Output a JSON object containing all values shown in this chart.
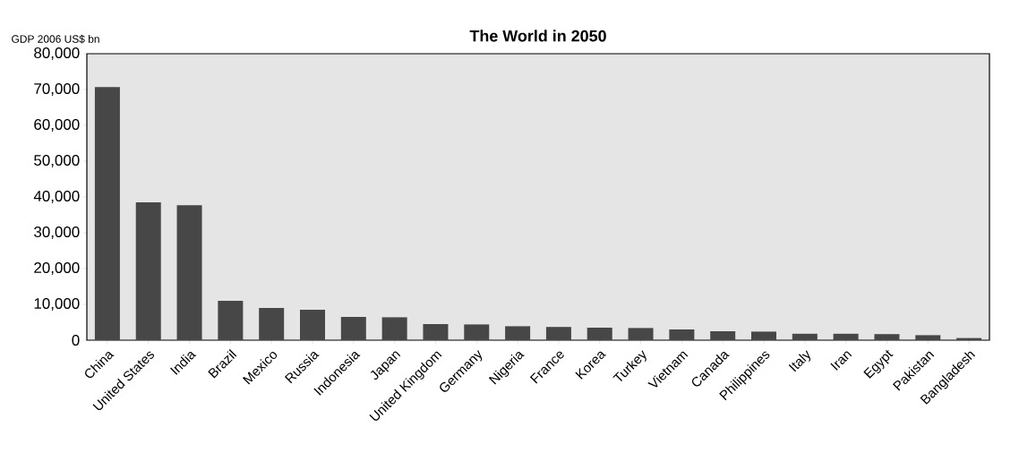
{
  "chart_data": {
    "type": "bar",
    "title": "The World in 2050",
    "ylabel": "GDP 2006 US$ bn",
    "categories": [
      "China",
      "United States",
      "India",
      "Brazil",
      "Mexico",
      "Russia",
      "Indonesia",
      "Japan",
      "United Kingdom",
      "Germany",
      "Nigeria",
      "France",
      "Korea",
      "Turkey",
      "Vietnam",
      "Canada",
      "Philippines",
      "Italy",
      "Iran",
      "Egypt",
      "Pakistan",
      "Bangladesh"
    ],
    "values": [
      70700,
      38500,
      37700,
      11000,
      9000,
      8500,
      6500,
      6400,
      4500,
      4400,
      3900,
      3700,
      3500,
      3400,
      3000,
      2500,
      2400,
      1800,
      1800,
      1700,
      1400,
      600
    ],
    "color": "#474747",
    "ylim": [
      0,
      80000
    ],
    "yticks": [
      {
        "value": 0,
        "label": "0"
      },
      {
        "value": 10000,
        "label": "10,000"
      },
      {
        "value": 20000,
        "label": "20,000"
      },
      {
        "value": 30000,
        "label": "30,000"
      },
      {
        "value": 40000,
        "label": "40,000"
      },
      {
        "value": 50000,
        "label": "50,000"
      },
      {
        "value": 60000,
        "label": "60,000"
      },
      {
        "value": 70000,
        "label": "70,000"
      },
      {
        "value": 80000,
        "label": "80,000"
      }
    ],
    "grid": false
  }
}
